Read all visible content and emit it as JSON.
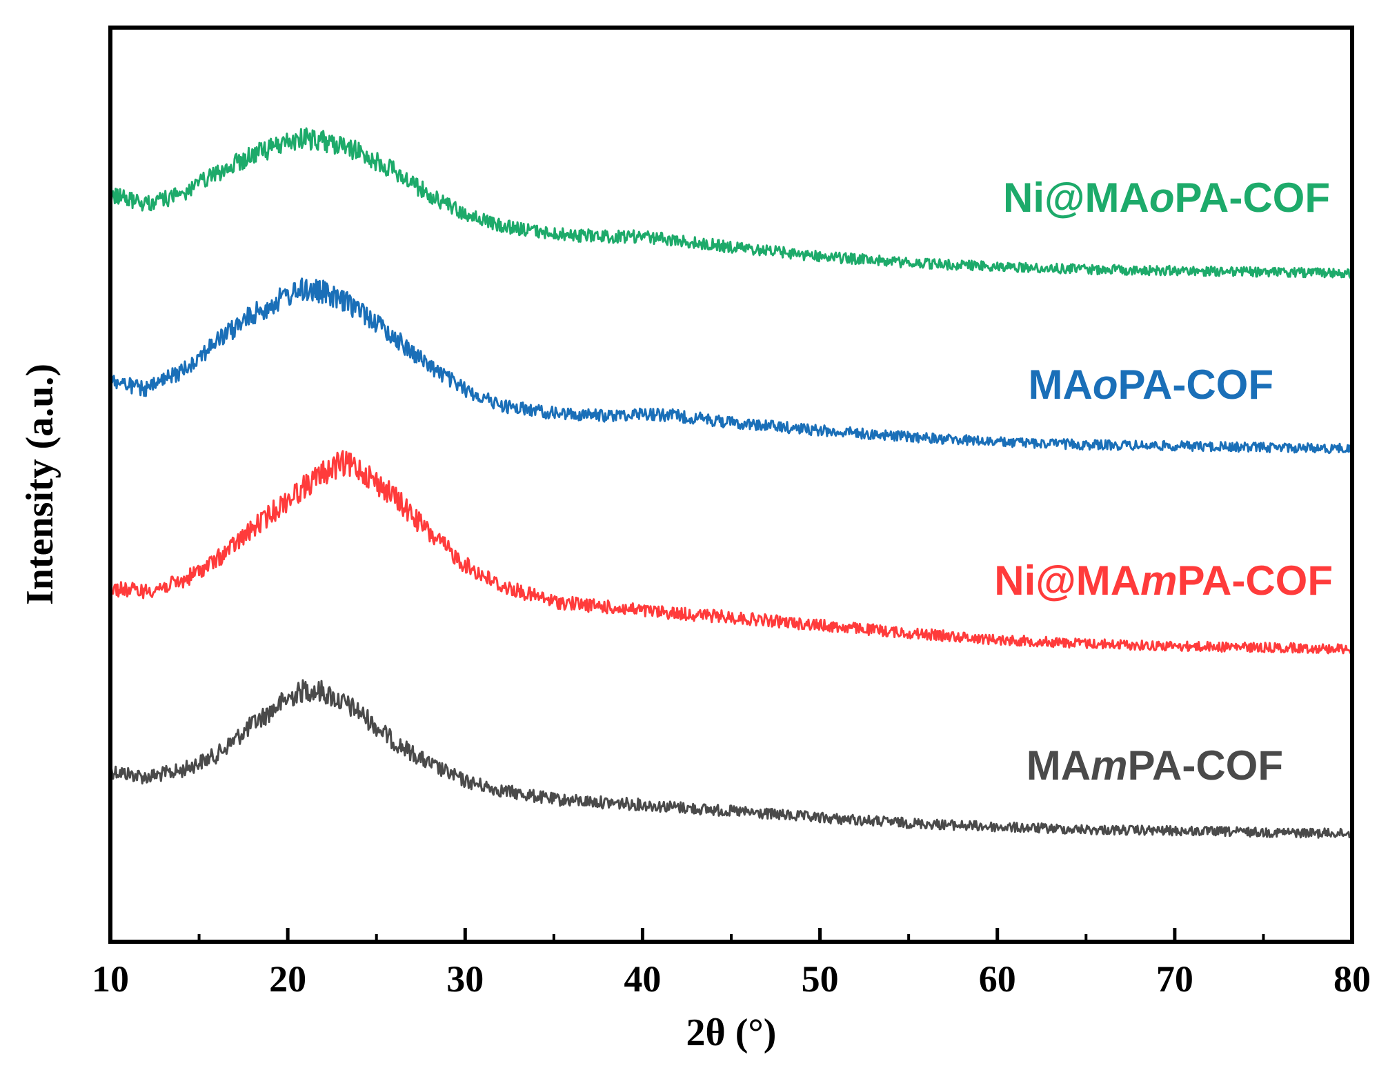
{
  "chart_data": {
    "type": "line",
    "title": "",
    "xlabel": "2θ (°)",
    "ylabel": "Intensity (a.u.)",
    "xlim": [
      10,
      80
    ],
    "xticks": [
      10,
      20,
      30,
      40,
      50,
      60,
      70,
      80
    ],
    "xtick_labels": [
      "10",
      "20",
      "30",
      "40",
      "50",
      "60",
      "70",
      "80"
    ],
    "yticks": false,
    "series": [
      {
        "name": "MAmPA-COF",
        "label_prefix": "MA",
        "label_italic": "m",
        "label_suffix": "PA-COF",
        "color": "#4a4a4a",
        "x": [
          10,
          12,
          14,
          16,
          18,
          20,
          21,
          22,
          24,
          26,
          28,
          30,
          32,
          35,
          40,
          45,
          50,
          55,
          60,
          65,
          70,
          75,
          80
        ],
        "y": [
          0.5,
          0.45,
          0.5,
          0.62,
          0.85,
          1.05,
          1.12,
          1.1,
          0.95,
          0.72,
          0.55,
          0.42,
          0.35,
          0.28,
          0.24,
          0.19,
          0.14,
          0.1,
          0.07,
          0.05,
          0.04,
          0.03,
          0.02
        ]
      },
      {
        "name": "Ni@MAmPA-COF",
        "label_prefix": "Ni@MA",
        "label_italic": "m",
        "label_suffix": "PA-COF",
        "color": "#ff3b3b",
        "x": [
          10,
          12,
          14,
          16,
          18,
          20,
          22,
          23,
          24,
          26,
          28,
          30,
          32,
          35,
          40,
          45,
          50,
          55,
          60,
          65,
          70,
          75,
          80
        ],
        "y": [
          0.5,
          0.48,
          0.55,
          0.72,
          0.95,
          1.18,
          1.38,
          1.45,
          1.42,
          1.2,
          0.92,
          0.68,
          0.52,
          0.4,
          0.33,
          0.28,
          0.22,
          0.16,
          0.11,
          0.08,
          0.06,
          0.05,
          0.04
        ]
      },
      {
        "name": "MAoPA-COF",
        "label_prefix": "MA",
        "label_italic": "o",
        "label_suffix": "PA-COF",
        "color": "#1a6fb8",
        "x": [
          10,
          12,
          14,
          16,
          18,
          20,
          21,
          22,
          24,
          26,
          28,
          30,
          32,
          35,
          38,
          40,
          42,
          45,
          50,
          55,
          60,
          65,
          70,
          75,
          80
        ],
        "y": [
          0.55,
          0.48,
          0.62,
          0.85,
          1.05,
          1.2,
          1.25,
          1.22,
          1.1,
          0.88,
          0.66,
          0.48,
          0.36,
          0.3,
          0.28,
          0.3,
          0.28,
          0.23,
          0.17,
          0.12,
          0.08,
          0.06,
          0.05,
          0.04,
          0.03
        ]
      },
      {
        "name": "Ni@MAoPA-COF",
        "label_prefix": "Ni@MA",
        "label_italic": "o",
        "label_suffix": "PA-COF",
        "color": "#1daa6a",
        "x": [
          10,
          12,
          14,
          16,
          18,
          20,
          21,
          22,
          24,
          26,
          28,
          30,
          32,
          35,
          38,
          40,
          42,
          45,
          50,
          55,
          60,
          65,
          70,
          75,
          80
        ],
        "y": [
          0.62,
          0.55,
          0.62,
          0.78,
          0.92,
          1.02,
          1.05,
          1.03,
          0.95,
          0.8,
          0.62,
          0.47,
          0.38,
          0.32,
          0.3,
          0.3,
          0.27,
          0.22,
          0.15,
          0.1,
          0.07,
          0.05,
          0.04,
          0.03,
          0.02
        ]
      }
    ]
  }
}
